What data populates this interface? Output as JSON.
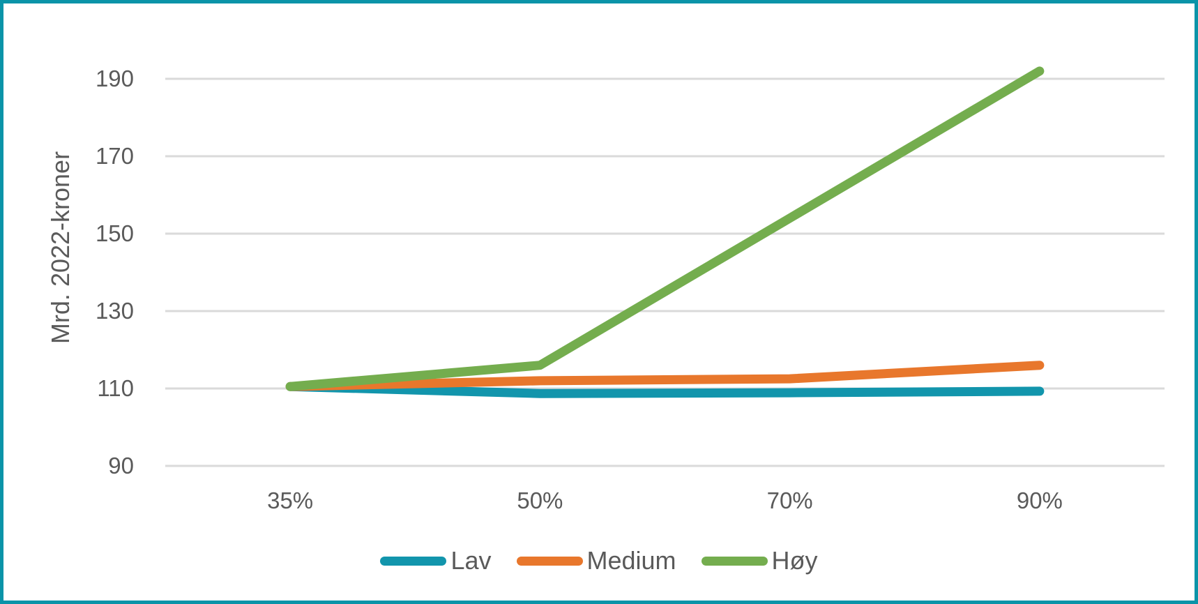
{
  "frame": {
    "border_color": "#0A94A8",
    "background_color": "#FFFFFF",
    "text_color": "#5A5A5A"
  },
  "chart_data": {
    "type": "line",
    "title": "",
    "xlabel": "",
    "ylabel": "Mrd. 2022-kroner",
    "categories": [
      "35%",
      "50%",
      "70%",
      "90%"
    ],
    "series": [
      {
        "id": "lav",
        "name": "Lav",
        "color": "#1295AC",
        "values": [
          110.5,
          108.7,
          108.9,
          109.3
        ]
      },
      {
        "id": "medium",
        "name": "Medium",
        "color": "#E8772C",
        "values": [
          110.5,
          112.0,
          112.5,
          116.0
        ]
      },
      {
        "id": "hoy",
        "name": "Høy",
        "color": "#74AD4E",
        "values": [
          110.5,
          116.0,
          154.0,
          192.0
        ]
      }
    ],
    "yticks": [
      90,
      110,
      130,
      150,
      170,
      190
    ],
    "ylim": [
      90,
      190
    ],
    "grid": true,
    "grid_color": "#DADADA",
    "legend_position": "bottom"
  }
}
